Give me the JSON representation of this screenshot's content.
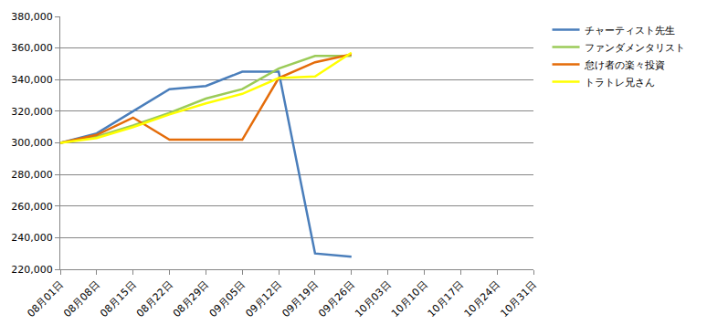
{
  "chart_data": {
    "type": "line",
    "categories": [
      "08月01日",
      "08月08日",
      "08月15日",
      "08月22日",
      "08月29日",
      "09月05日",
      "09月12日",
      "09月19日",
      "09月26日",
      "10月03日",
      "10月10日",
      "10月17日",
      "10月24日",
      "10月31日"
    ],
    "series": [
      {
        "name": "チャーティスト先生",
        "color": "#4a7ebb",
        "values": [
          300000,
          306000,
          320000,
          334000,
          336000,
          345000,
          345000,
          230000,
          228000,
          null,
          null,
          null,
          null,
          null
        ]
      },
      {
        "name": "ファンダメンタリスト",
        "color": "#9bcb58",
        "values": [
          300000,
          304000,
          311000,
          319000,
          328000,
          334000,
          347000,
          355000,
          355000,
          null,
          null,
          null,
          null,
          null
        ]
      },
      {
        "name": "怠け者の楽々投資",
        "color": "#e46c0a",
        "values": [
          300000,
          305000,
          316000,
          302000,
          302000,
          302000,
          341000,
          351000,
          356000,
          null,
          null,
          null,
          null,
          null
        ]
      },
      {
        "name": "トラトレ兄さん",
        "color": "#ffff00",
        "values": [
          300000,
          303000,
          310000,
          318000,
          325000,
          331000,
          341000,
          342000,
          357000,
          null,
          null,
          null,
          null,
          null
        ]
      }
    ],
    "ylim": [
      220000,
      380000
    ],
    "yticks": [
      {
        "value": 220000,
        "label": "220,000"
      },
      {
        "value": 240000,
        "label": "240,000"
      },
      {
        "value": 260000,
        "label": "260,000"
      },
      {
        "value": 280000,
        "label": "280,000"
      },
      {
        "value": 300000,
        "label": "300,000"
      },
      {
        "value": 320000,
        "label": "320,000"
      },
      {
        "value": 340000,
        "label": "340,000"
      },
      {
        "value": 360000,
        "label": "360,000"
      },
      {
        "value": 380000,
        "label": "380,000"
      }
    ],
    "grid": true,
    "legend": "right"
  }
}
